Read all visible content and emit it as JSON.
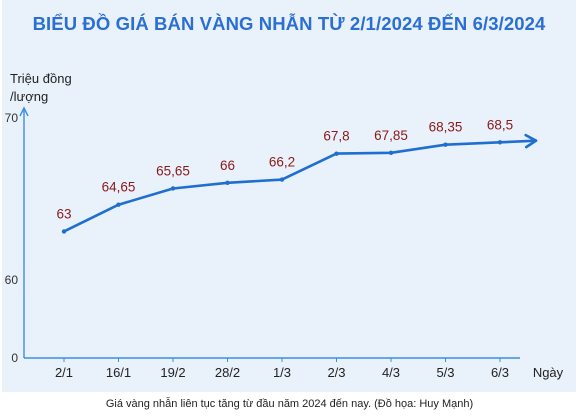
{
  "chart_data": {
    "type": "line",
    "title": "BIỂU ĐỒ GIÁ BÁN VÀNG NHẪN TỪ 2/1/2024 ĐẾN 6/3/2024",
    "ylabel": "Triệu đồng /lượng",
    "xlabel": "Ngày",
    "categories": [
      "2/1",
      "16/1",
      "19/2",
      "28/2",
      "1/3",
      "2/3",
      "4/3",
      "5/3",
      "6/3"
    ],
    "values": [
      63,
      64.65,
      65.65,
      66,
      66.2,
      67.8,
      67.85,
      68.35,
      68.5
    ],
    "value_labels": [
      "63",
      "64,65",
      "65,65",
      "66",
      "66,2",
      "67,8",
      "67,85",
      "68,35",
      "68,5"
    ],
    "y_ticks": [
      "70",
      "60",
      "0"
    ],
    "grid": false,
    "line_color": "#1f6fd0",
    "label_color": "#8b1a1a"
  },
  "caption": "Giá vàng nhẫn liên tục tăng từ đầu năm 2024 đến nay. (Đồ họa: Huy Mạnh)"
}
